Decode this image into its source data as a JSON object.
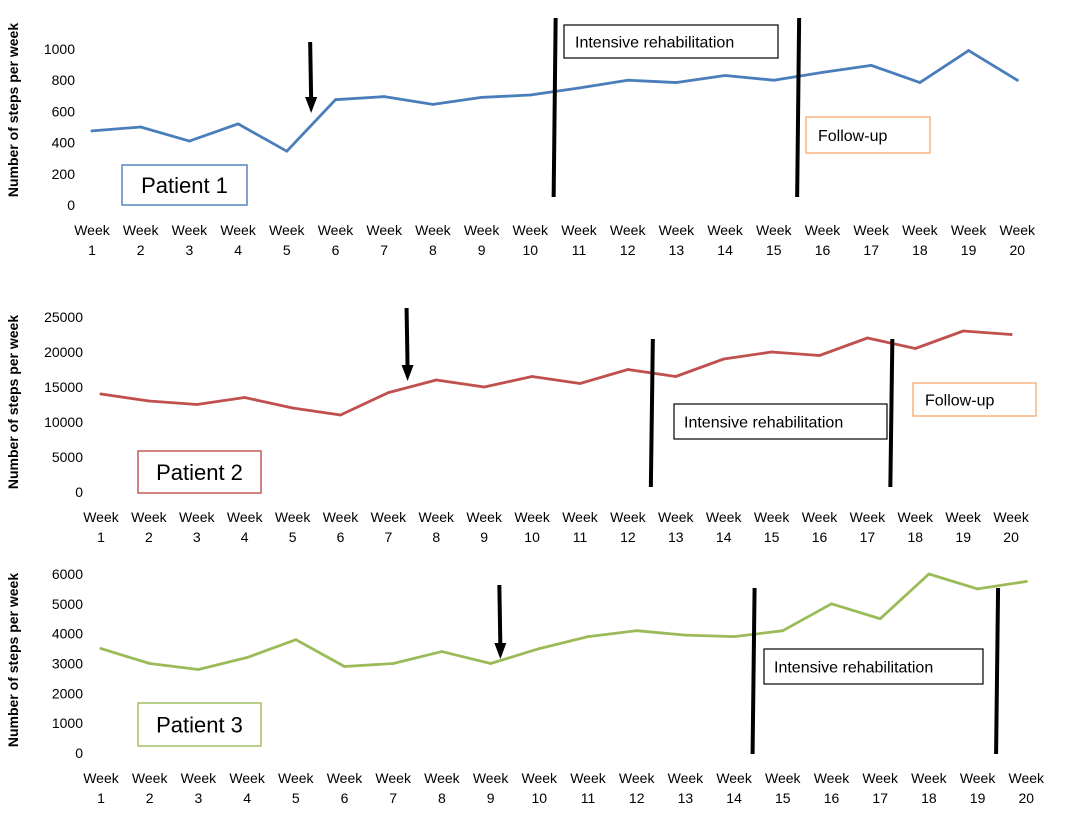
{
  "chart_data": [
    {
      "type": "line",
      "ylabel": "Number of steps per week",
      "patient_label": "Patient 1",
      "color": "#4a7ebb",
      "label_box_color": "#4a7ebb",
      "ylim": [
        0,
        1000
      ],
      "yticks": [
        0,
        200,
        400,
        600,
        800,
        1000
      ],
      "categories": [
        "Week 1",
        "Week 2",
        "Week 3",
        "Week 4",
        "Week 5",
        "Week 6",
        "Week 7",
        "Week 8",
        "Week 9",
        "Week 10",
        "Week 11",
        "Week 12",
        "Week 13",
        "Week 14",
        "Week 15",
        "Week 16",
        "Week 17",
        "Week 18",
        "Week 19",
        "Week 20"
      ],
      "values": [
        475,
        500,
        410,
        520,
        345,
        675,
        695,
        645,
        690,
        705,
        750,
        800,
        785,
        830,
        800,
        850,
        895,
        785,
        990,
        800
      ],
      "arrow_week": 5.5,
      "phase_lines": [
        10.5,
        15.5
      ],
      "annotations": [
        {
          "text": "Intensive rehabilitation",
          "border": "#000000"
        },
        {
          "text": "Follow-up",
          "border": "#f5a060"
        }
      ],
      "grid": false
    },
    {
      "type": "line",
      "ylabel": "Number of steps per week",
      "patient_label": "Patient 2",
      "color": "#c0504d",
      "label_box_color": "#c0504d",
      "ylim": [
        0,
        25000
      ],
      "yticks": [
        0,
        5000,
        10000,
        15000,
        20000,
        25000
      ],
      "categories": [
        "Week 1",
        "Week 2",
        "Week 3",
        "Week 4",
        "Week 5",
        "Week 6",
        "Week 7",
        "Week 8",
        "Week 9",
        "Week 10",
        "Week 11",
        "Week 12",
        "Week 13",
        "Week 14",
        "Week 15",
        "Week 16",
        "Week 17",
        "Week 18",
        "Week 19",
        "Week 20"
      ],
      "values": [
        14000,
        13000,
        12500,
        13500,
        12000,
        11000,
        14200,
        16000,
        15000,
        16500,
        15500,
        17500,
        16500,
        19000,
        20000,
        19500,
        22000,
        20500,
        23000,
        22500
      ],
      "arrow_week": 7.4,
      "phase_lines": [
        12.5,
        17.5
      ],
      "annotations": [
        {
          "text": "Intensive rehabilitation",
          "border": "#000000"
        },
        {
          "text": "Follow-up",
          "border": "#f5a060"
        }
      ],
      "grid": false
    },
    {
      "type": "line",
      "ylabel": "Number of steps per week",
      "patient_label": "Patient 3",
      "color": "#9bbb59",
      "label_box_color": "#9bbb59",
      "ylim": [
        0,
        6000
      ],
      "yticks": [
        0,
        1000,
        2000,
        3000,
        4000,
        5000,
        6000
      ],
      "categories": [
        "Week 1",
        "Week 2",
        "Week 3",
        "Week 4",
        "Week 5",
        "Week 6",
        "Week 7",
        "Week 8",
        "Week 9",
        "Week 10",
        "Week 11",
        "Week 12",
        "Week 13",
        "Week 14",
        "Week 15",
        "Week 16",
        "Week 17",
        "Week 18",
        "Week 19",
        "Week 20"
      ],
      "values": [
        3500,
        3000,
        2800,
        3200,
        3800,
        2900,
        3000,
        3400,
        3000,
        3500,
        3900,
        4100,
        3950,
        3900,
        4100,
        5000,
        4500,
        6000,
        5500,
        5750
      ],
      "arrow_week": 9.2,
      "phase_lines": [
        14.4,
        19.4
      ],
      "annotations": [
        {
          "text": "Intensive rehabilitation",
          "border": "#000000"
        }
      ],
      "grid": false
    }
  ]
}
